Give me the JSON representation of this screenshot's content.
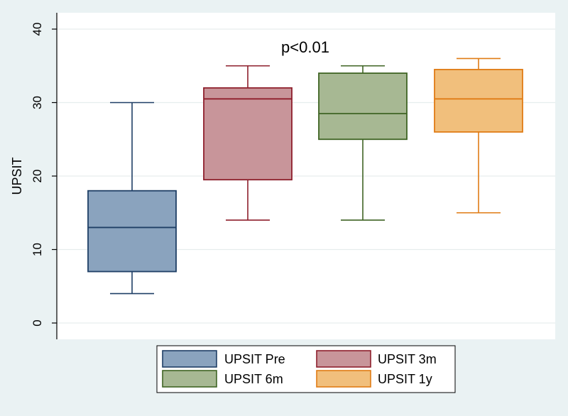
{
  "chart_data": {
    "type": "box",
    "title": "",
    "annotation": "p<0.01",
    "xlabel": "",
    "ylabel": "UPSIT",
    "ylim": [
      0,
      40
    ],
    "yticks": [
      0,
      10,
      20,
      30,
      40
    ],
    "grid": true,
    "legend_position": "bottom",
    "series": [
      {
        "name": "UPSIT Pre",
        "color": "#8aa3be",
        "stroke": "#1f3f66",
        "min": 4,
        "q1": 7,
        "median": 13,
        "q3": 18,
        "max": 30
      },
      {
        "name": "UPSIT 3m",
        "color": "#c8959a",
        "stroke": "#8e1f2c",
        "min": 14,
        "q1": 19.5,
        "median": 30.5,
        "q3": 32,
        "max": 35
      },
      {
        "name": "UPSIT 6m",
        "color": "#a7b893",
        "stroke": "#3f6424",
        "min": 14,
        "q1": 25,
        "median": 28.5,
        "q3": 34,
        "max": 35
      },
      {
        "name": "UPSIT 1y",
        "color": "#f1bf7c",
        "stroke": "#e07c15",
        "min": 15,
        "q1": 26,
        "median": 30.5,
        "q3": 34.5,
        "max": 36
      }
    ]
  }
}
